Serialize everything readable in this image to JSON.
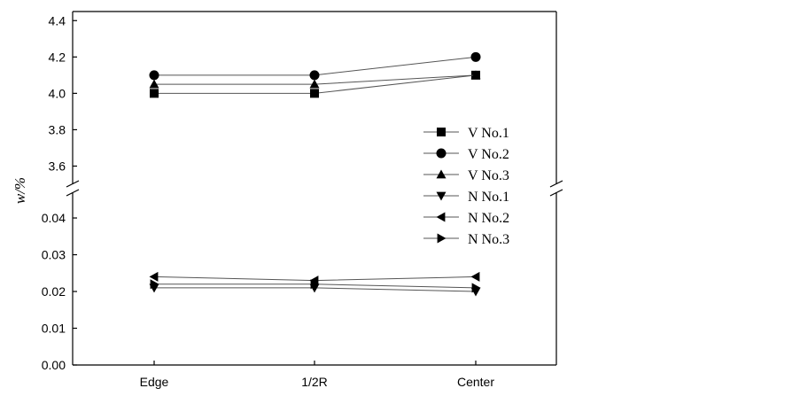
{
  "chart_data": {
    "type": "line",
    "title": "",
    "xlabel": "",
    "ylabel": "w/%",
    "categories": [
      "Edge",
      "1/2R",
      "Center"
    ],
    "y_axis": {
      "broken": true,
      "upper_segment": {
        "range": [
          3.5,
          4.45
        ],
        "ticks": [
          3.6,
          3.8,
          4.0,
          4.2,
          4.4
        ],
        "tick_labels": [
          "3.6",
          "3.8",
          "4.0",
          "4.2",
          "4.4"
        ]
      },
      "lower_segment": {
        "range": [
          0.0,
          0.047
        ],
        "ticks": [
          0.0,
          0.01,
          0.02,
          0.03,
          0.04
        ],
        "tick_labels": [
          "0.00",
          "0.01",
          "0.02",
          "0.03",
          "0.04"
        ]
      }
    },
    "grid": false,
    "legend_position": "right-center",
    "series": [
      {
        "name": "V No.1",
        "marker": "square",
        "values": [
          4.0,
          4.0,
          4.1
        ]
      },
      {
        "name": "V No.2",
        "marker": "circle",
        "values": [
          4.1,
          4.1,
          4.2
        ]
      },
      {
        "name": "V No.3",
        "marker": "triangle-up",
        "values": [
          4.05,
          4.05,
          4.1
        ]
      },
      {
        "name": "N No.1",
        "marker": "triangle-down",
        "values": [
          0.021,
          0.021,
          0.02
        ]
      },
      {
        "name": "N No.2",
        "marker": "triangle-left",
        "values": [
          0.024,
          0.023,
          0.024
        ]
      },
      {
        "name": "N No.3",
        "marker": "triangle-right",
        "values": [
          0.022,
          0.022,
          0.021
        ]
      }
    ]
  }
}
